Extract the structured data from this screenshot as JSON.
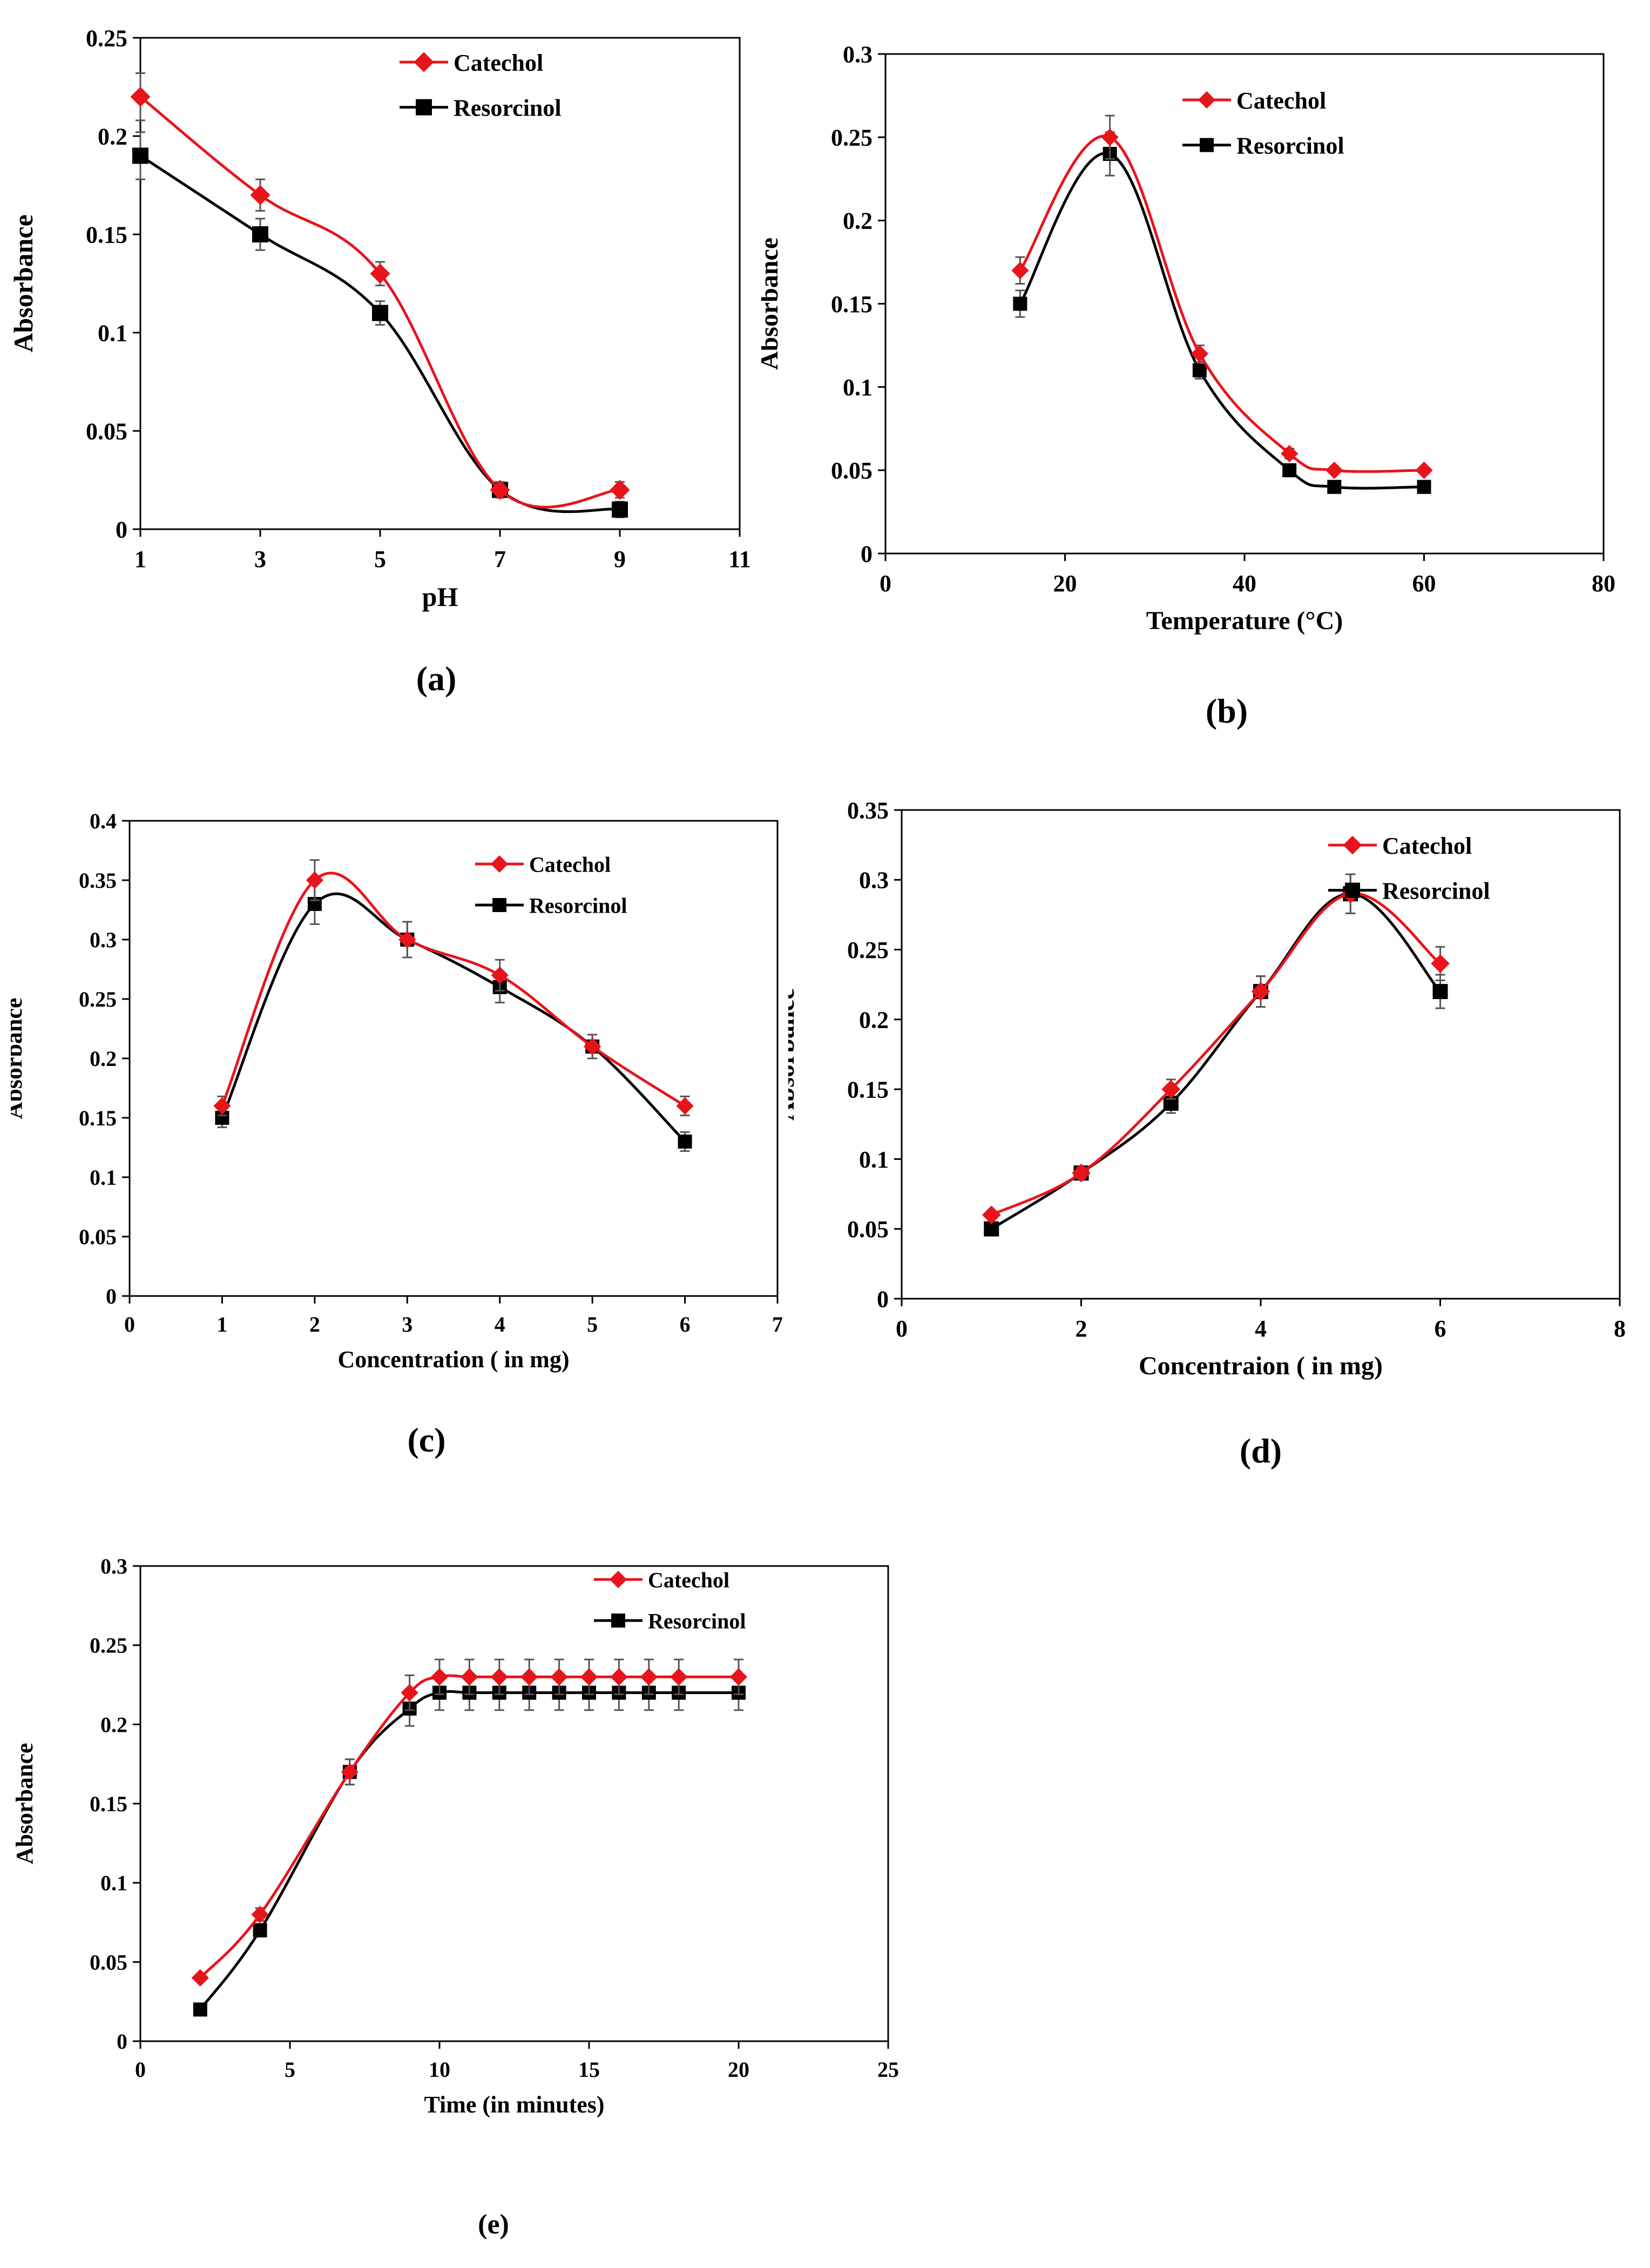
{
  "colors": {
    "catechol": "#e8141b",
    "resorcinol": "#000000",
    "axis": "#000000",
    "errorbar": "#555555"
  },
  "charts": [
    {
      "chart_data": {
        "type": "line",
        "panel_label": "(a)",
        "xlabel": "pH",
        "ylabel": "Absorbance",
        "xlim": [
          1,
          11
        ],
        "ylim": [
          0,
          0.25
        ],
        "xticks": [
          "1",
          "3",
          "5",
          "7",
          "9",
          "11"
        ],
        "yticks": [
          "0",
          "0.05",
          "0.1",
          "0.15",
          "0.2",
          "0.25"
        ],
        "legend": "top-right",
        "series": [
          {
            "name": "Catechol",
            "marker": "diamond",
            "x": [
              1,
              3,
              5,
              7,
              9
            ],
            "y": [
              0.22,
              0.17,
              0.13,
              0.02,
              0.02
            ],
            "err": [
              0.012,
              0.008,
              0.006,
              0.004,
              0.004
            ]
          },
          {
            "name": "Resorcinol",
            "marker": "square",
            "x": [
              1,
              3,
              5,
              7,
              9
            ],
            "y": [
              0.19,
              0.15,
              0.11,
              0.02,
              0.01
            ],
            "err": [
              0.012,
              0.008,
              0.006,
              0.004,
              0.004
            ]
          }
        ]
      }
    },
    {
      "chart_data": {
        "type": "line",
        "panel_label": "(b)",
        "xlabel": "Temperature (°C)",
        "ylabel": "Absorbance",
        "xlim": [
          0,
          80
        ],
        "ylim": [
          0,
          0.3
        ],
        "xticks": [
          "0",
          "20",
          "40",
          "60",
          "80"
        ],
        "yticks": [
          "0",
          "0.05",
          "0.1",
          "0.15",
          "0.2",
          "0.25",
          "0.3"
        ],
        "legend": "top-right",
        "series": [
          {
            "name": "Catechol",
            "marker": "diamond",
            "x": [
              15,
              25,
              35,
              45,
              50,
              60
            ],
            "y": [
              0.17,
              0.25,
              0.12,
              0.06,
              0.05,
              0.05
            ],
            "err": [
              0.008,
              0.013,
              0.005,
              0.003,
              0.002,
              0.002
            ]
          },
          {
            "name": "Resorcinol",
            "marker": "square",
            "x": [
              15,
              25,
              35,
              45,
              50,
              60
            ],
            "y": [
              0.15,
              0.24,
              0.11,
              0.05,
              0.04,
              0.04
            ],
            "err": [
              0.008,
              0.013,
              0.005,
              0.003,
              0.002,
              0.002
            ]
          }
        ]
      }
    },
    {
      "chart_data": {
        "type": "line",
        "panel_label": "(c)",
        "xlabel": "Concentration ( in mg)",
        "ylabel": "Absorbance",
        "xlim": [
          0,
          7
        ],
        "ylim": [
          0,
          0.4
        ],
        "xticks": [
          "0",
          "1",
          "2",
          "3",
          "4",
          "5",
          "6",
          "7"
        ],
        "yticks": [
          "0",
          "0.05",
          "0.1",
          "0.15",
          "0.2",
          "0.25",
          "0.3",
          "0.35",
          "0.4"
        ],
        "legend": "top-right",
        "series": [
          {
            "name": "Catechol",
            "marker": "diamond",
            "x": [
              1,
              2,
              3,
              4,
              5,
              6
            ],
            "y": [
              0.16,
              0.35,
              0.3,
              0.27,
              0.21,
              0.16
            ],
            "err": [
              0.008,
              0.017,
              0.015,
              0.013,
              0.01,
              0.008
            ]
          },
          {
            "name": "Resorcinol",
            "marker": "square",
            "x": [
              1,
              2,
              3,
              4,
              5,
              6
            ],
            "y": [
              0.15,
              0.33,
              0.3,
              0.26,
              0.21,
              0.13
            ],
            "err": [
              0.008,
              0.017,
              0.015,
              0.013,
              0.01,
              0.008
            ]
          }
        ]
      }
    },
    {
      "chart_data": {
        "type": "line",
        "panel_label": "(d)",
        "xlabel": "Concentraion ( in mg)",
        "ylabel": "Absorbance",
        "xlim": [
          0,
          8
        ],
        "ylim": [
          0,
          0.35
        ],
        "xticks": [
          "0",
          "2",
          "4",
          "6",
          "8"
        ],
        "yticks": [
          "0",
          "0.05",
          "0.1",
          "0.15",
          "0.2",
          "0.25",
          "0.3",
          "0.35"
        ],
        "legend": "top-right",
        "series": [
          {
            "name": "Catechol",
            "marker": "diamond",
            "x": [
              1,
              2,
              3,
              4,
              5,
              6
            ],
            "y": [
              0.06,
              0.09,
              0.15,
              0.22,
              0.29,
              0.24
            ],
            "err": [
              0.003,
              0.004,
              0.007,
              0.011,
              0.014,
              0.012
            ]
          },
          {
            "name": "Resorcinol",
            "marker": "square",
            "x": [
              1,
              2,
              3,
              4,
              5,
              6
            ],
            "y": [
              0.05,
              0.09,
              0.14,
              0.22,
              0.29,
              0.22
            ],
            "err": [
              0.003,
              0.004,
              0.007,
              0.011,
              0.014,
              0.012
            ]
          }
        ]
      }
    },
    {
      "chart_data": {
        "type": "line",
        "panel_label": "(e)",
        "xlabel": "Time (in minutes)",
        "ylabel": "Absorbance",
        "xlim": [
          0,
          25
        ],
        "ylim": [
          0,
          0.3
        ],
        "xticks": [
          "0",
          "5",
          "10",
          "15",
          "20",
          "25"
        ],
        "yticks": [
          "0",
          "0.05",
          "0.1",
          "0.15",
          "0.2",
          "0.25",
          "0.3"
        ],
        "legend": "top-right",
        "series": [
          {
            "name": "Catechol",
            "marker": "diamond",
            "x": [
              2,
              4,
              7,
              9,
              10,
              11,
              12,
              13,
              14,
              15,
              16,
              17,
              18,
              20
            ],
            "y": [
              0.04,
              0.08,
              0.17,
              0.22,
              0.23,
              0.23,
              0.23,
              0.23,
              0.23,
              0.23,
              0.23,
              0.23,
              0.23,
              0.23
            ],
            "err": [
              0.002,
              0.004,
              0.008,
              0.011,
              0.011,
              0.011,
              0.011,
              0.011,
              0.011,
              0.011,
              0.011,
              0.011,
              0.011,
              0.011
            ]
          },
          {
            "name": "Resorcinol",
            "marker": "square",
            "x": [
              2,
              4,
              7,
              9,
              10,
              11,
              12,
              13,
              14,
              15,
              16,
              17,
              18,
              20
            ],
            "y": [
              0.02,
              0.07,
              0.17,
              0.21,
              0.22,
              0.22,
              0.22,
              0.22,
              0.22,
              0.22,
              0.22,
              0.22,
              0.22,
              0.22
            ],
            "err": [
              0.002,
              0.004,
              0.008,
              0.011,
              0.011,
              0.011,
              0.011,
              0.011,
              0.011,
              0.011,
              0.011,
              0.011,
              0.011,
              0.011
            ]
          }
        ]
      }
    }
  ]
}
